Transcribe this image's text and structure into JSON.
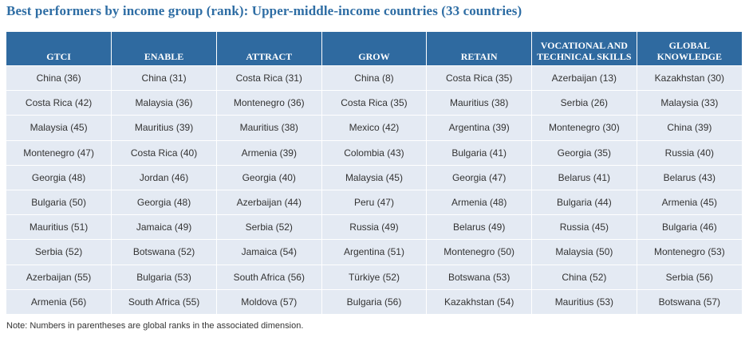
{
  "title": "Best performers by income group (rank): Upper-middle-income countries (33 countries)",
  "table": {
    "headers": [
      "GTCI",
      "ENABLE",
      "ATTRACT",
      "GROW",
      "RETAIN",
      "VOCATIONAL AND TECHNICAL SKILLS",
      "GLOBAL KNOWLEDGE"
    ],
    "rows": [
      [
        "China (36)",
        "China (31)",
        "Costa Rica (31)",
        "China (8)",
        "Costa Rica (35)",
        "Azerbaijan (13)",
        "Kazakhstan (30)"
      ],
      [
        "Costa Rica (42)",
        "Malaysia (36)",
        "Montenegro (36)",
        "Costa Rica (35)",
        "Mauritius (38)",
        "Serbia (26)",
        "Malaysia (33)"
      ],
      [
        "Malaysia (45)",
        "Mauritius (39)",
        "Mauritius (38)",
        "Mexico (42)",
        "Argentina (39)",
        "Montenegro (30)",
        "China (39)"
      ],
      [
        "Montenegro (47)",
        "Costa Rica (40)",
        "Armenia (39)",
        "Colombia (43)",
        "Bulgaria (41)",
        "Georgia (35)",
        "Russia (40)"
      ],
      [
        "Georgia (48)",
        "Jordan (46)",
        "Georgia (40)",
        "Malaysia (45)",
        "Georgia (47)",
        "Belarus (41)",
        "Belarus (43)"
      ],
      [
        "Bulgaria (50)",
        "Georgia (48)",
        "Azerbaijan (44)",
        "Peru (47)",
        "Armenia (48)",
        "Bulgaria (44)",
        "Armenia (45)"
      ],
      [
        "Mauritius (51)",
        "Jamaica (49)",
        "Serbia (52)",
        "Russia (49)",
        "Belarus (49)",
        "Russia (45)",
        "Bulgaria (46)"
      ],
      [
        "Serbia (52)",
        "Botswana (52)",
        "Jamaica (54)",
        "Argentina (51)",
        "Montenegro (50)",
        "Malaysia (50)",
        "Montenegro (53)"
      ],
      [
        "Azerbaijan (55)",
        "Bulgaria (53)",
        "South Africa (56)",
        "Türkiye (52)",
        "Botswana (53)",
        "China (52)",
        "Serbia (56)"
      ],
      [
        "Armenia (56)",
        "South Africa (55)",
        "Moldova (57)",
        "Bulgaria (56)",
        "Kazakhstan (54)",
        "Mauritius (53)",
        "Botswana (57)"
      ]
    ]
  },
  "note": "Note: Numbers in parentheses are global ranks in the associated dimension.",
  "colors": {
    "title": "#2e6da4",
    "header_bg": "#2f6aa0",
    "cell_bg": "#e4eaf3"
  }
}
